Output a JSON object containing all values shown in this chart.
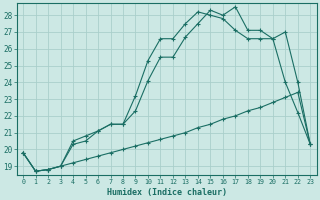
{
  "bg_color": "#cce8e4",
  "grid_color": "#aacfcb",
  "line_color": "#1a6e64",
  "xlabel": "Humidex (Indice chaleur)",
  "xlim": [
    -0.5,
    23.5
  ],
  "ylim": [
    18.5,
    28.7
  ],
  "yticks": [
    19,
    20,
    21,
    22,
    23,
    24,
    25,
    26,
    27,
    28
  ],
  "xticks": [
    0,
    1,
    2,
    3,
    4,
    5,
    6,
    7,
    8,
    9,
    10,
    11,
    12,
    13,
    14,
    15,
    16,
    17,
    18,
    19,
    20,
    21,
    22,
    23
  ],
  "series1_x": [
    0,
    1,
    2,
    3,
    4,
    5,
    6,
    7,
    8,
    9,
    10,
    11,
    12,
    13,
    14,
    15,
    16,
    17,
    18,
    19,
    20,
    21,
    22,
    23
  ],
  "series1_y": [
    19.8,
    18.7,
    18.8,
    19.0,
    19.2,
    19.4,
    19.6,
    19.8,
    20.0,
    20.2,
    20.4,
    20.6,
    20.8,
    21.0,
    21.3,
    21.5,
    21.8,
    22.0,
    22.3,
    22.5,
    22.8,
    23.1,
    23.4,
    20.3
  ],
  "series2_x": [
    0,
    1,
    2,
    3,
    4,
    5,
    6,
    7,
    8,
    9,
    10,
    11,
    12,
    13,
    14,
    15,
    16,
    17,
    18,
    19,
    20,
    21,
    22,
    23
  ],
  "series2_y": [
    19.8,
    18.7,
    18.8,
    19.0,
    20.5,
    20.8,
    21.1,
    21.5,
    21.5,
    23.2,
    25.3,
    26.6,
    26.6,
    27.5,
    28.2,
    28.0,
    27.8,
    27.1,
    26.6,
    26.6,
    26.6,
    24.0,
    22.2,
    20.3
  ],
  "series3_x": [
    0,
    1,
    2,
    3,
    4,
    5,
    6,
    7,
    8,
    9,
    10,
    11,
    12,
    13,
    14,
    15,
    16,
    17,
    18,
    19,
    20,
    21,
    22,
    23
  ],
  "series3_y": [
    19.8,
    18.7,
    18.8,
    19.0,
    20.3,
    20.5,
    21.1,
    21.5,
    21.5,
    22.3,
    24.1,
    25.5,
    25.5,
    26.7,
    27.5,
    28.3,
    28.0,
    28.5,
    27.1,
    27.1,
    26.6,
    27.0,
    24.0,
    20.3
  ]
}
